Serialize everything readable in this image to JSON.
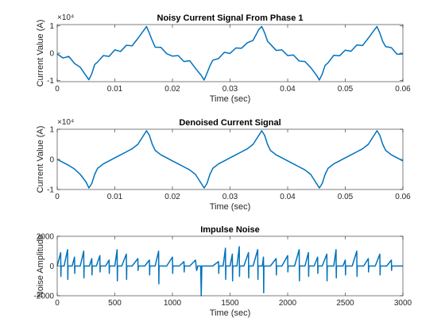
{
  "chart_data": [
    {
      "type": "line",
      "title": "Noisy Current Signal From Phase 1",
      "xlabel": "Time (sec)",
      "ylabel": "Current Value (A)",
      "y_exponent": "×10⁴",
      "xlim": [
        0,
        0.06
      ],
      "xticks": [
        0,
        0.01,
        0.02,
        0.03,
        0.04,
        0.05,
        0.06
      ],
      "ylim": [
        -10500,
        10500
      ],
      "yticks": [
        {
          "value": -10000,
          "label": "-1"
        },
        {
          "value": 0,
          "label": "0"
        },
        {
          "value": 10000,
          "label": "1"
        }
      ],
      "grid": false,
      "x": [
        0,
        0.001,
        0.002,
        0.003,
        0.004,
        0.005,
        0.0055,
        0.006,
        0.0065,
        0.007,
        0.008,
        0.009,
        0.01,
        0.011,
        0.012,
        0.013,
        0.014,
        0.015,
        0.0155,
        0.016,
        0.0165,
        0.017,
        0.018,
        0.019,
        0.02,
        0.021,
        0.022,
        0.023,
        0.024,
        0.025,
        0.0255,
        0.026,
        0.0265,
        0.027,
        0.028,
        0.029,
        0.03,
        0.031,
        0.032,
        0.033,
        0.034,
        0.035,
        0.0355,
        0.036,
        0.0365,
        0.037,
        0.038,
        0.039,
        0.04,
        0.041,
        0.042,
        0.043,
        0.044,
        0.045,
        0.0455,
        0.046,
        0.0465,
        0.047,
        0.048,
        0.049,
        0.05,
        0.051,
        0.052,
        0.053,
        0.054,
        0.055,
        0.0555,
        0.056,
        0.0565,
        0.057,
        0.058,
        0.059,
        0.06
      ],
      "series": [
        {
          "name": "Noisy",
          "color": "#0072bd",
          "values": [
            -300,
            -1800,
            -1200,
            -3800,
            -5200,
            -8300,
            -9800,
            -7600,
            -4200,
            -3300,
            -900,
            -1200,
            1200,
            600,
            2900,
            2700,
            5400,
            8300,
            9800,
            7300,
            4600,
            2200,
            2100,
            -200,
            -1100,
            -900,
            -3100,
            -2800,
            -5600,
            -8200,
            -9900,
            -7400,
            -4700,
            -2600,
            -2000,
            300,
            -100,
            1900,
            1800,
            3800,
            4700,
            8700,
            9800,
            7500,
            4400,
            3300,
            1000,
            1200,
            -900,
            -700,
            -2900,
            -3100,
            -5300,
            -8100,
            -9900,
            -7700,
            -4500,
            -3600,
            -800,
            -1000,
            1100,
            700,
            3000,
            2800,
            5500,
            8400,
            9800,
            7400,
            4300,
            2400,
            2000,
            -400,
            -300
          ]
        }
      ]
    },
    {
      "type": "line",
      "title": "Denoised Current Signal",
      "xlabel": "Time (sec)",
      "ylabel": "Current Value (A)",
      "y_exponent": "×10⁴",
      "xlim": [
        0,
        0.06
      ],
      "xticks": [
        0,
        0.01,
        0.02,
        0.03,
        0.04,
        0.05,
        0.06
      ],
      "ylim": [
        -10000,
        10000
      ],
      "yticks": [
        {
          "value": -10000,
          "label": "-1"
        },
        {
          "value": 0,
          "label": "0"
        },
        {
          "value": 10000,
          "label": "1"
        }
      ],
      "grid": false,
      "x": [
        0,
        0.001,
        0.002,
        0.003,
        0.004,
        0.005,
        0.0055,
        0.006,
        0.0065,
        0.007,
        0.008,
        0.009,
        0.01,
        0.011,
        0.012,
        0.013,
        0.014,
        0.015,
        0.0155,
        0.016,
        0.0165,
        0.017,
        0.018,
        0.019,
        0.02,
        0.021,
        0.022,
        0.023,
        0.024,
        0.025,
        0.0255,
        0.026,
        0.0265,
        0.027,
        0.028,
        0.029,
        0.03,
        0.031,
        0.032,
        0.033,
        0.034,
        0.035,
        0.0355,
        0.036,
        0.0365,
        0.037,
        0.038,
        0.039,
        0.04,
        0.041,
        0.042,
        0.043,
        0.044,
        0.045,
        0.0455,
        0.046,
        0.0465,
        0.047,
        0.048,
        0.049,
        0.05,
        0.051,
        0.052,
        0.053,
        0.054,
        0.055,
        0.0555,
        0.056,
        0.0565,
        0.057,
        0.058,
        0.059,
        0.06
      ],
      "series": [
        {
          "name": "Denoised",
          "color": "#0072bd",
          "values": [
            0,
            -1000,
            -2000,
            -3200,
            -5000,
            -7500,
            -9500,
            -8000,
            -5000,
            -3000,
            -1500,
            -500,
            500,
            1500,
            2500,
            3500,
            5000,
            8000,
            9500,
            8000,
            5000,
            3000,
            1500,
            500,
            -500,
            -1500,
            -2500,
            -3500,
            -5000,
            -8000,
            -9500,
            -8000,
            -5000,
            -3000,
            -1500,
            -500,
            500,
            1500,
            2500,
            3500,
            5000,
            8000,
            9500,
            8000,
            5000,
            3000,
            1500,
            500,
            -500,
            -1500,
            -2500,
            -3500,
            -5000,
            -8000,
            -9500,
            -8000,
            -5000,
            -3000,
            -1500,
            -500,
            500,
            1500,
            2500,
            3500,
            5000,
            8000,
            9500,
            8000,
            5000,
            3000,
            1500,
            500,
            -500
          ]
        }
      ]
    },
    {
      "type": "line",
      "title": "Impulse Noise",
      "xlabel": "Time (sec)",
      "ylabel": "Noise Amplitude",
      "xlim": [
        0,
        3000
      ],
      "xticks": [
        0,
        500,
        1000,
        1500,
        2000,
        2500,
        3000
      ],
      "ylim": [
        -2000,
        2000
      ],
      "yticks": [
        -2000,
        0,
        2000
      ],
      "grid": false,
      "x": [
        0,
        30,
        32,
        34,
        60,
        90,
        92,
        94,
        130,
        150,
        152,
        154,
        200,
        230,
        232,
        234,
        280,
        300,
        302,
        304,
        340,
        370,
        372,
        374,
        420,
        450,
        452,
        454,
        500,
        520,
        522,
        524,
        560,
        600,
        602,
        604,
        650,
        700,
        702,
        704,
        760,
        800,
        802,
        804,
        850,
        880,
        882,
        884,
        950,
        1000,
        1002,
        1004,
        1060,
        1100,
        1102,
        1104,
        1150,
        1200,
        1210,
        1220,
        1245,
        1250,
        1255,
        1300,
        1350,
        1400,
        1402,
        1404,
        1440,
        1460,
        1462,
        1464,
        1500,
        1520,
        1522,
        1524,
        1560,
        1580,
        1582,
        1584,
        1620,
        1660,
        1662,
        1664,
        1700,
        1740,
        1742,
        1744,
        1780,
        1790,
        1792,
        1794,
        1850,
        1900,
        1902,
        1904,
        1950,
        2000,
        2002,
        2004,
        2060,
        2100,
        2102,
        2104,
        2150,
        2180,
        2182,
        2184,
        2230,
        2260,
        2262,
        2264,
        2300,
        2340,
        2342,
        2344,
        2400,
        2420,
        2422,
        2424,
        2480,
        2500,
        2502,
        2504,
        2560,
        2600,
        2602,
        2604,
        2660,
        2700,
        2702,
        2704,
        2760,
        2800,
        2802,
        2804,
        2860,
        2900,
        2902,
        2904,
        2950,
        3000
      ],
      "series": [
        {
          "name": "Noise",
          "color": "#0072bd",
          "values": [
            0,
            900,
            -700,
            0,
            0,
            1100,
            -900,
            0,
            0,
            600,
            -500,
            0,
            0,
            1000,
            -800,
            0,
            0,
            500,
            -600,
            0,
            0,
            700,
            -400,
            0,
            0,
            400,
            -500,
            0,
            0,
            1100,
            -1000,
            0,
            0,
            800,
            -900,
            0,
            0,
            500,
            -300,
            0,
            0,
            400,
            -600,
            0,
            0,
            1000,
            -1200,
            0,
            0,
            600,
            -500,
            0,
            0,
            300,
            -400,
            0,
            0,
            400,
            -300,
            0,
            0,
            -2000,
            0,
            0,
            0,
            300,
            -500,
            0,
            0,
            1200,
            -900,
            0,
            0,
            800,
            -1000,
            0,
            0,
            1300,
            -700,
            0,
            0,
            900,
            -800,
            0,
            0,
            1100,
            -900,
            0,
            0,
            600,
            -1800,
            0,
            0,
            500,
            -600,
            0,
            0,
            700,
            -400,
            0,
            0,
            1100,
            -1000,
            0,
            0,
            900,
            -700,
            0,
            0,
            600,
            -500,
            0,
            0,
            800,
            -1000,
            0,
            0,
            1100,
            -800,
            0,
            0,
            400,
            -600,
            0,
            0,
            1000,
            -700,
            0,
            0,
            500,
            -400,
            0,
            0,
            800,
            -600,
            0,
            0,
            400,
            -300,
            0,
            0,
            0
          ]
        }
      ]
    }
  ]
}
